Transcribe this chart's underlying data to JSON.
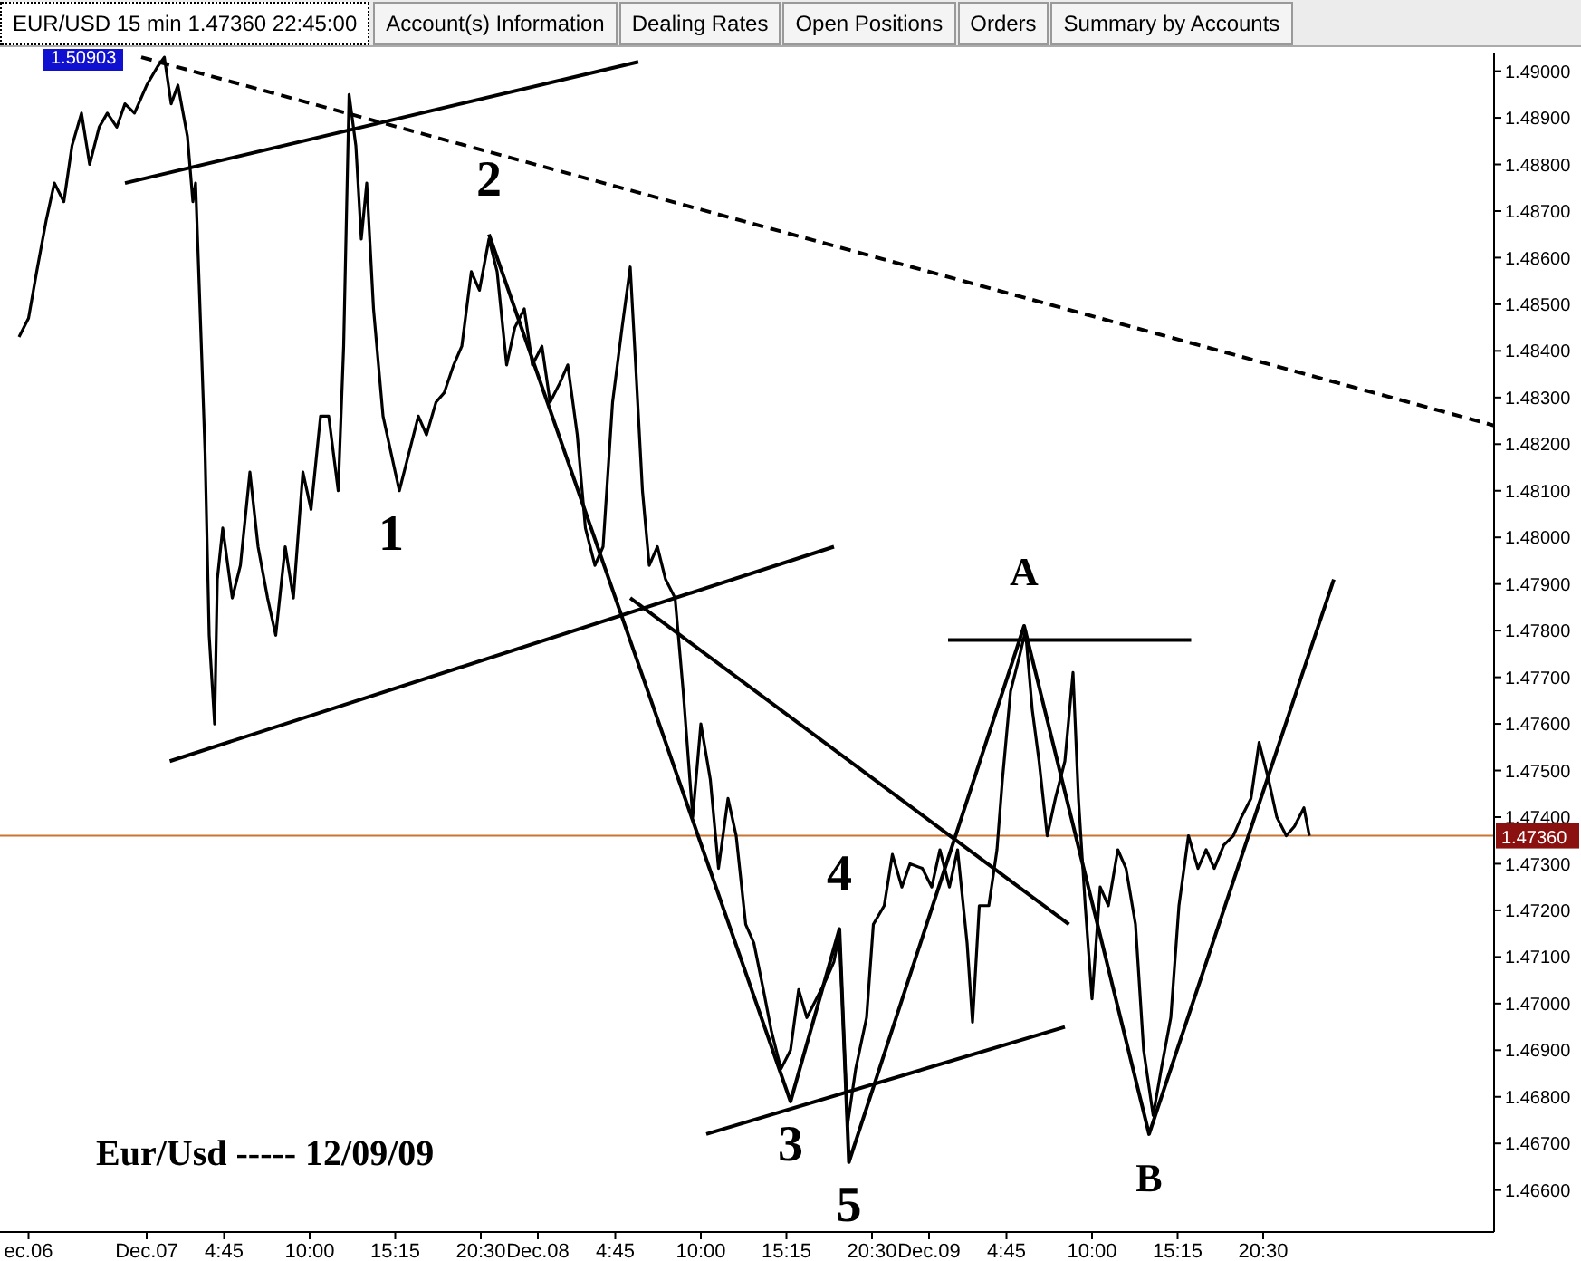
{
  "chart_data": {
    "type": "line",
    "title": "EUR/USD 15 min 1.47360 22:45:00",
    "subtitle": "Eur/Usd ----- 12/09/09",
    "annotations": [
      "Account(s) Information",
      "Dealing Rates",
      "Open Positions",
      "Orders",
      "Summary by Accounts",
      "1.50903",
      {
        "text": "1",
        "x": "--12-07T15:00",
        "y": 1.481
      },
      {
        "text": "2",
        "x": "--12-07T21:00",
        "y": 1.4865
      },
      {
        "text": "3",
        "x": "--12-08T15:30",
        "y": 1.4679
      },
      {
        "text": "4",
        "x": "--12-08T18:30",
        "y": 1.4716
      },
      {
        "text": "5",
        "x": "--12-08T19:05",
        "y": 1.4666
      },
      {
        "text": "A",
        "x": "--12-09T05:50",
        "y": 1.4781
      },
      {
        "text": "B",
        "x": "--12-09T13:30",
        "y": 1.4672
      }
    ],
    "xlim": [
      "--12-06T15:00",
      "--12-10T10:40"
    ],
    "xticks": [
      {
        "value": "--12-06T16:45",
        "label": "ec.06"
      },
      {
        "value": "--12-07",
        "label": "Dec.07"
      },
      {
        "value": "--12-07T04:45",
        "label": "4:45"
      },
      {
        "value": "--12-07T10:00",
        "label": "10:00"
      },
      {
        "value": "--12-07T15:15",
        "label": "15:15"
      },
      {
        "value": "--12-07T20:30",
        "label": "20:30"
      },
      {
        "value": "--12-08",
        "label": "Dec.08"
      },
      {
        "value": "--12-08T04:45",
        "label": "4:45"
      },
      {
        "value": "--12-08T10:00",
        "label": "10:00"
      },
      {
        "value": "--12-08T15:15",
        "label": "15:15"
      },
      {
        "value": "--12-08T20:30",
        "label": "20:30"
      },
      {
        "value": "--12-09",
        "label": "Dec.09"
      },
      {
        "value": "--12-09T04:45",
        "label": "4:45"
      },
      {
        "value": "--12-09T10:00",
        "label": "10:00"
      },
      {
        "value": "--12-09T15:15",
        "label": "15:15"
      },
      {
        "value": "--12-09T20:30",
        "label": "20:30"
      }
    ],
    "ylim": [
      1.4651,
      1.4904
    ],
    "yticks": [
      {
        "value": 1.466,
        "label": "1.46600"
      },
      {
        "value": 1.467,
        "label": "1.46700"
      },
      {
        "value": 1.468,
        "label": "1.46800"
      },
      {
        "value": 1.469,
        "label": "1.46900"
      },
      {
        "value": 1.47,
        "label": "1.47000"
      },
      {
        "value": 1.471,
        "label": "1.47100"
      },
      {
        "value": 1.472,
        "label": "1.47200"
      },
      {
        "value": 1.473,
        "label": "1.47300"
      },
      {
        "value": 1.474,
        "label": "1.47400"
      },
      {
        "value": 1.475,
        "label": "1.47500"
      },
      {
        "value": 1.476,
        "label": "1.47600"
      },
      {
        "value": 1.477,
        "label": "1.47700"
      },
      {
        "value": 1.478,
        "label": "1.47800"
      },
      {
        "value": 1.479,
        "label": "1.47900"
      },
      {
        "value": 1.48,
        "label": "1.48000"
      },
      {
        "value": 1.481,
        "label": "1.48100"
      },
      {
        "value": 1.482,
        "label": "1.48200"
      },
      {
        "value": 1.483,
        "label": "1.48300"
      },
      {
        "value": 1.484,
        "label": "1.48400"
      },
      {
        "value": 1.485,
        "label": "1.48500"
      },
      {
        "value": 1.486,
        "label": "1.48600"
      },
      {
        "value": 1.487,
        "label": "1.48700"
      },
      {
        "value": 1.488,
        "label": "1.48800"
      },
      {
        "value": 1.489,
        "label": "1.48900"
      },
      {
        "value": 1.49,
        "label": "1.49000"
      }
    ],
    "ref_lines": [
      {
        "axis": "y",
        "value": 1.4736,
        "label": "1.47360",
        "color": "#c87533"
      }
    ],
    "grid": false,
    "marker": "none",
    "line_style": "solid",
    "series": [
      {
        "color": "#000000",
        "x": [
          "--12-06T16:10",
          "--12-06T16:45",
          "--12-06T17:15",
          "--12-06T17:50",
          "--12-06T18:20",
          "--12-06T18:55",
          "--12-06T19:25",
          "--12-06T20:00",
          "--12-06T20:30",
          "--12-06T21:05",
          "--12-06T21:35",
          "--12-06T22:10",
          "--12-06T22:40",
          "--12-06T23:15",
          "--12-07T00:00",
          "--12-07T00:40",
          "--12-07T01:05",
          "--12-07T01:30",
          "--12-07T01:55",
          "--12-07T02:30",
          "--12-07T02:50",
          "--12-07T03:00",
          "--12-07T03:20",
          "--12-07T03:35",
          "--12-07T03:50",
          "--12-07T04:10",
          "--12-07T04:20",
          "--12-07T04:40",
          "--12-07T05:15",
          "--12-07T05:45",
          "--12-07T06:20",
          "--12-07T06:50",
          "--12-07T07:25",
          "--12-07T07:55",
          "--12-07T08:30",
          "--12-07T09:00",
          "--12-07T09:35",
          "--12-07T10:05",
          "--12-07T10:40",
          "--12-07T11:10",
          "--12-07T11:45",
          "--12-07T12:05",
          "--12-07T12:25",
          "--12-07T12:50",
          "--12-07T13:10",
          "--12-07T13:30",
          "--12-07T13:55",
          "--12-07T14:30",
          "--12-07T15:00",
          "--12-07T15:30",
          "--12-07T16:05",
          "--12-07T16:40",
          "--12-07T17:10",
          "--12-07T17:45",
          "--12-07T18:15",
          "--12-07T18:50",
          "--12-07T19:20",
          "--12-07T19:55",
          "--12-07T20:25",
          "--12-07T21:00",
          "--12-07T21:30",
          "--12-07T22:05",
          "--12-07T22:35",
          "--12-07T23:10",
          "--12-07T23:40",
          "--12-08T00:15",
          "--12-08T00:45",
          "--12-08T01:20",
          "--12-08T01:50",
          "--12-08T02:25",
          "--12-08T02:55",
          "--12-08T03:30",
          "--12-08T04:00",
          "--12-08T04:35",
          "--12-08T05:10",
          "--12-08T05:40",
          "--12-08T06:00",
          "--12-08T06:25",
          "--12-08T06:50",
          "--12-08T07:20",
          "--12-08T07:50",
          "--12-08T08:25",
          "--12-08T08:55",
          "--12-08T09:30",
          "--12-08T10:00",
          "--12-08T10:35",
          "--12-08T11:05",
          "--12-08T11:40",
          "--12-08T12:10",
          "--12-08T12:45",
          "--12-08T13:15",
          "--12-08T13:50",
          "--12-08T14:20",
          "--12-08T14:55",
          "--12-08T15:30",
          "--12-08T16:00",
          "--12-08T16:30",
          "--12-08T17:05",
          "--12-08T17:40",
          "--12-08T18:10",
          "--12-08T18:30",
          "--12-08T19:00",
          "--12-08T19:30",
          "--12-08T20:10",
          "--12-08T20:35",
          "--12-08T21:15",
          "--12-08T21:45",
          "--12-08T22:20",
          "--12-08T22:50",
          "--12-08T23:35",
          "--12-09T00:10",
          "--12-09T00:40",
          "--12-09T01:15",
          "--12-09T01:45",
          "--12-09T02:20",
          "--12-09T02:40",
          "--12-09T03:05",
          "--12-09T03:40",
          "--12-09T04:10",
          "--12-09T04:30",
          "--12-09T05:00",
          "--12-09T05:35",
          "--12-09T05:55",
          "--12-09T06:20",
          "--12-09T06:45",
          "--12-09T07:15",
          "--12-09T07:45",
          "--12-09T08:20",
          "--12-09T08:50",
          "--12-09T09:10",
          "--12-09T09:35",
          "--12-09T10:00",
          "--12-09T10:30",
          "--12-09T11:00",
          "--12-09T11:35",
          "--12-09T12:05",
          "--12-09T12:40",
          "--12-09T13:10",
          "--12-09T13:45",
          "--12-09T14:15",
          "--12-09T14:50",
          "--12-09T15:20",
          "--12-09T15:55",
          "--12-09T16:30",
          "--12-09T17:00",
          "--12-09T17:30",
          "--12-09T18:05",
          "--12-09T18:40",
          "--12-09T19:10",
          "--12-09T19:45",
          "--12-09T20:15",
          "--12-09T20:50",
          "--12-09T21:20",
          "--12-09T21:55",
          "--12-09T22:25",
          "--12-09T23:00",
          "--12-09T23:20"
        ],
        "values": [
          1.4843,
          1.4847,
          1.4857,
          1.4868,
          1.4876,
          1.4872,
          1.4884,
          1.4891,
          1.488,
          1.4888,
          1.4891,
          1.4888,
          1.4893,
          1.4891,
          1.4897,
          1.4901,
          1.4903,
          1.4893,
          1.4897,
          1.4886,
          1.4872,
          1.4876,
          1.4843,
          1.4818,
          1.4779,
          1.476,
          1.4791,
          1.4802,
          1.4787,
          1.4794,
          1.4814,
          1.4798,
          1.4787,
          1.4779,
          1.4798,
          1.4787,
          1.4814,
          1.4806,
          1.4826,
          1.4826,
          1.481,
          1.4841,
          1.4895,
          1.4884,
          1.4864,
          1.4876,
          1.4849,
          1.4826,
          1.4818,
          1.481,
          1.4818,
          1.4826,
          1.4822,
          1.4829,
          1.4831,
          1.4837,
          1.4841,
          1.4857,
          1.4853,
          1.4864,
          1.4857,
          1.4837,
          1.4845,
          1.4849,
          1.4837,
          1.4841,
          1.4829,
          1.4833,
          1.4837,
          1.4822,
          1.4802,
          1.4794,
          1.4798,
          1.4829,
          1.4845,
          1.4858,
          1.4837,
          1.481,
          1.4794,
          1.4798,
          1.4791,
          1.4787,
          1.4767,
          1.474,
          1.476,
          1.4748,
          1.4729,
          1.4744,
          1.4736,
          1.4717,
          1.4713,
          1.4703,
          1.4694,
          1.4686,
          1.469,
          1.4703,
          1.4697,
          1.4701,
          1.4705,
          1.4709,
          1.4715,
          1.4674,
          1.4686,
          1.4697,
          1.4717,
          1.4721,
          1.4732,
          1.4725,
          1.473,
          1.4729,
          1.4725,
          1.4733,
          1.4725,
          1.4733,
          1.4713,
          1.4696,
          1.4721,
          1.4721,
          1.4733,
          1.4748,
          1.4767,
          1.4775,
          1.478,
          1.4763,
          1.4752,
          1.4736,
          1.4744,
          1.4752,
          1.4771,
          1.4744,
          1.4721,
          1.4701,
          1.4725,
          1.4721,
          1.4733,
          1.4729,
          1.4717,
          1.469,
          1.4676,
          1.4686,
          1.4697,
          1.4721,
          1.4736,
          1.4729,
          1.4733,
          1.4729,
          1.4734,
          1.4736,
          1.474,
          1.4744,
          1.4756,
          1.4748,
          1.474,
          1.4736,
          1.4738,
          1.4742,
          1.4736
        ]
      },
      {
        "color": "#000000",
        "line_style": "dashed",
        "x": [
          "--12-06T23:40",
          "--12-10T10:40"
        ],
        "values": [
          1.4903,
          1.4824
        ]
      },
      {
        "color": "#000000",
        "x": [
          "--12-06T22:40",
          "--12-08T06:10"
        ],
        "values": [
          1.4876,
          1.4902
        ]
      },
      {
        "color": "#000000",
        "x": [
          "--12-07T01:25",
          "--12-08T18:10"
        ],
        "values": [
          1.4752,
          1.4798
        ]
      },
      {
        "color": "#000000",
        "x": [
          "--12-07T21:00",
          "--12-08T15:30",
          "--12-08T18:30",
          "--12-08T19:05",
          "--12-09T05:50",
          "--12-09T13:30",
          "--12-10T00:50"
        ],
        "values": [
          1.4865,
          1.4679,
          1.4716,
          1.4666,
          1.4781,
          1.4672,
          1.4791
        ]
      },
      {
        "color": "#000000",
        "x": [
          "--12-08T05:40",
          "--12-09T08:35"
        ],
        "values": [
          1.4787,
          1.4717
        ]
      },
      {
        "color": "#000000",
        "x": [
          "--12-08T10:20",
          "--12-09T08:20"
        ],
        "values": [
          1.4672,
          1.4695
        ]
      },
      {
        "color": "#000000",
        "x": [
          "--12-09T01:10",
          "--12-09T16:05"
        ],
        "values": [
          1.4778,
          1.4778
        ]
      }
    ]
  }
}
